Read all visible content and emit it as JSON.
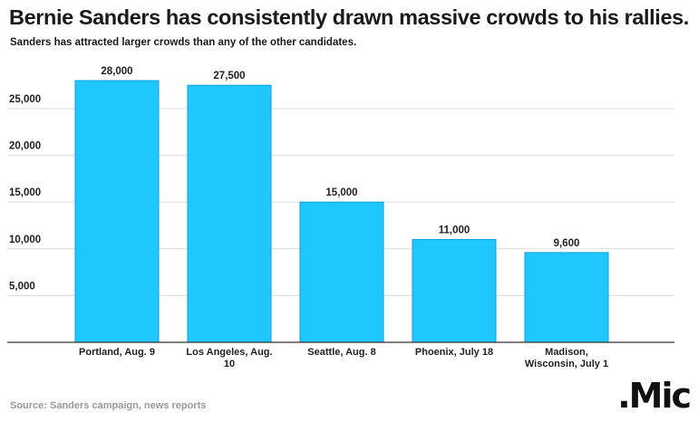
{
  "header": {
    "title": "Bernie Sanders has consistently drawn massive crowds to his rallies.",
    "subtitle": "Sanders has attracted larger crowds than any of the other candidates."
  },
  "footer": {
    "source": "Source: Sanders campaign, news reports",
    "logo": ".Mic"
  },
  "chart_data": {
    "type": "bar",
    "categories": [
      [
        "Portland, Aug. 9"
      ],
      [
        "Los Angeles, Aug.",
        "10"
      ],
      [
        "Seattle, Aug. 8"
      ],
      [
        "Phoenix, July 18"
      ],
      [
        "Madison,",
        "Wisconsin, July 1"
      ]
    ],
    "values": [
      28000,
      27500,
      15000,
      11000,
      9600
    ],
    "value_labels": [
      "28,000",
      "27,500",
      "15,000",
      "11,000",
      "9,600"
    ],
    "yticks": [
      5000,
      10000,
      15000,
      20000,
      25000
    ],
    "ytick_labels": [
      "5,000",
      "10,000",
      "15,000",
      "20,000",
      "25,000"
    ],
    "ylim": [
      0,
      28000
    ],
    "grid": true,
    "bar_color": "#1ec8ff",
    "bar_edge_color": "#0fa0d8"
  }
}
